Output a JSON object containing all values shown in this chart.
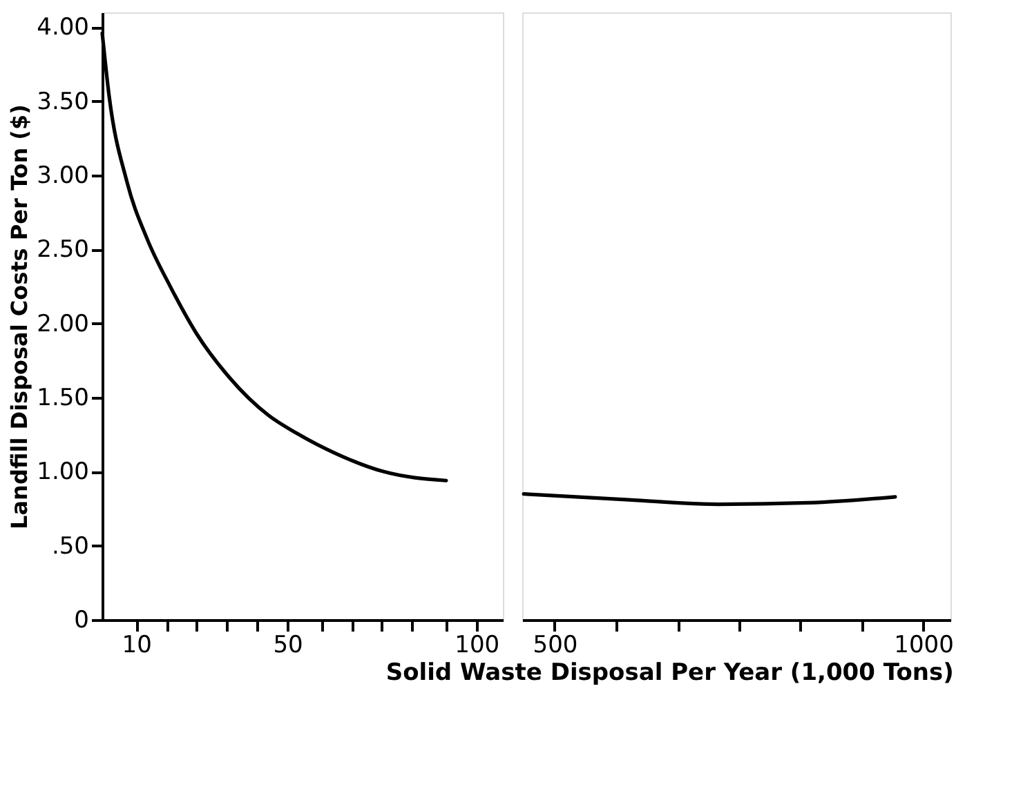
{
  "chart_data": [
    {
      "type": "line",
      "ylabel": "Landfill  Disposal  Costs  Per  Ton  ($)",
      "xlabel": "Solid  Waste  Disposal  Per  Year  (1,000  Tons)",
      "x": [
        1,
        2.8,
        7.5,
        12.9,
        19,
        26,
        34.5,
        45,
        52.4,
        63,
        75.5,
        92
      ],
      "series": [
        {
          "color": "#000000",
          "values": [
            3.96,
            3.54,
            2.96,
            2.57,
            2.25,
            1.93,
            1.64,
            1.38,
            1.26,
            1.12,
            1.0,
            0.94
          ]
        }
      ],
      "xlim": [
        1,
        107
      ],
      "ylim": [
        0,
        4.1
      ],
      "xticks": [
        10,
        {
          "value": 18,
          "label": null
        },
        {
          "value": 26,
          "label": null
        },
        {
          "value": 34,
          "label": null
        },
        {
          "value": 42,
          "label": null
        },
        50,
        {
          "value": 59,
          "label": null
        },
        {
          "value": 67,
          "label": null
        },
        {
          "value": 75,
          "label": null
        },
        {
          "value": 83,
          "label": null
        },
        {
          "value": 92,
          "label": null
        },
        100
      ],
      "yticks": [
        0,
        {
          "value": 0.5,
          "label": ".50"
        },
        {
          "value": 1,
          "label": "1.00"
        },
        {
          "value": 1.5,
          "label": "1.50"
        },
        {
          "value": 2,
          "label": "2.00"
        },
        {
          "value": 2.5,
          "label": "2.50"
        },
        {
          "value": 3,
          "label": "3.00"
        },
        {
          "value": 3.5,
          "label": "3.50"
        },
        {
          "value": 4,
          "label": "4.00"
        }
      ],
      "grid": false,
      "marker": "none",
      "line_style": "solid"
    },
    {
      "type": "line",
      "x": [
        458,
        601,
        722,
        845,
        962
      ],
      "series": [
        {
          "color": "#000000",
          "values": [
            0.85,
            0.81,
            0.78,
            0.79,
            0.83
          ]
        }
      ],
      "xlim": [
        456,
        1037
      ],
      "ylim": [
        0,
        4.1
      ],
      "xticks": [
        500,
        {
          "value": 583,
          "label": null
        },
        {
          "value": 667,
          "label": null
        },
        {
          "value": 750,
          "label": null
        },
        {
          "value": 833,
          "label": null
        },
        {
          "value": 917,
          "label": null
        },
        1000
      ],
      "tick_labels": "x",
      "grid": false,
      "marker": "none",
      "line_style": "solid"
    }
  ]
}
